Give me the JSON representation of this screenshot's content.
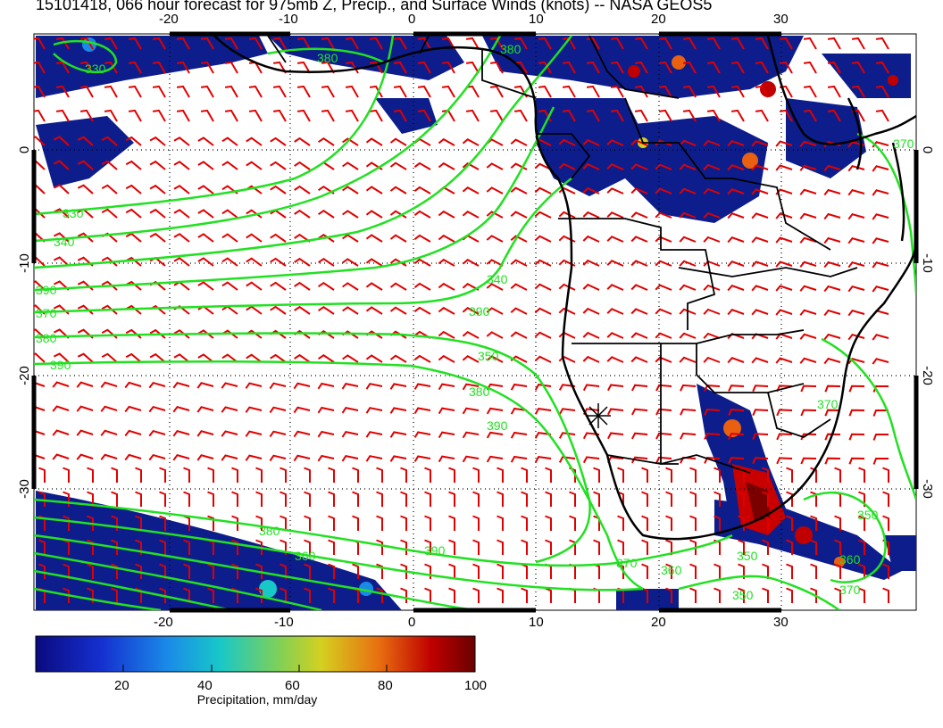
{
  "title": "15101418, 066 hour forecast for 975mb Z, Precip., and Surface Winds (knots) -- NASA GEOS5",
  "map": {
    "lon_ticks_top": [
      "-20",
      "-10",
      "0",
      "10",
      "20",
      "30"
    ],
    "lon_ticks_bottom": [
      "-20",
      "-10",
      "0",
      "10",
      "20",
      "30"
    ],
    "lat_ticks_left": [
      "0",
      "-10",
      "-20",
      "-30"
    ],
    "lat_ticks_right": [
      "0",
      "-10",
      "-20",
      "-30"
    ],
    "contour_labels": [
      "330",
      "340",
      "350",
      "360",
      "370",
      "380",
      "390"
    ],
    "colors": {
      "contour": "#22e022",
      "wind_barb": "#e00000",
      "coast": "#000000",
      "precip_low": "#0d1e8c",
      "precip_high": "#7a0000"
    }
  },
  "colorbar": {
    "ticks": [
      "20",
      "40",
      "60",
      "80",
      "100"
    ],
    "title": "Precipitation, mm/day",
    "range": [
      0,
      100
    ]
  }
}
